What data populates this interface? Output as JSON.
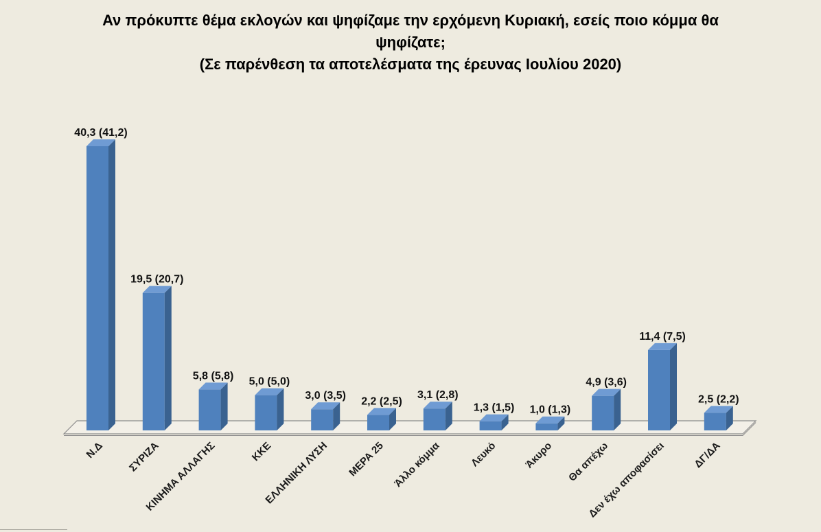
{
  "chart_data": {
    "type": "bar",
    "style": "3d",
    "title": "Αν πρόκυπτε θέμα εκλογών και ψηφίζαμε την ερχόμενη Κυριακή, εσείς ποιο κόμμα θα\nψηφίζατε;",
    "subtitle": "(Σε παρένθεση τα αποτελέσματα της έρευνας Ιουλίου 2020)",
    "categories": [
      "Ν.Δ",
      "ΣΥΡΙΖΑ",
      "ΚΙΝΗΜΑ ΑΛΛΑΓΗΣ",
      "ΚΚΕ",
      "ΕΛΛΗΝΙΚΗ ΛΥΣΗ",
      "ΜΕΡΑ 25",
      "Άλλο κόμμα",
      "Λευκό",
      "Άκυρο",
      "Θα απέχω",
      "Δεν έχω αποφασίσει",
      "ΔΓ/ΔΑ"
    ],
    "series": [
      {
        "values": [
          40.3,
          19.5,
          5.8,
          5.0,
          3.0,
          2.2,
          3.1,
          1.3,
          1.0,
          4.9,
          11.4,
          2.5
        ]
      }
    ],
    "previous_values": [
      41.2,
      20.7,
      5.8,
      5.0,
      3.5,
      2.5,
      2.8,
      1.5,
      1.3,
      3.6,
      7.5,
      2.2
    ],
    "data_labels": [
      "40,3 (41,2)",
      "19,5 (20,7)",
      "5,8 (5,8)",
      "5,0 (5,0)",
      "3,0 (3,5)",
      "2,2 (2,5)",
      "3,1 (2,8)",
      "1,3 (1,5)",
      "1,0 (1,3)",
      "4,9 (3,6)",
      "11,4 (7,5)",
      "2,5 (2,2)"
    ],
    "grid": false,
    "legend": "none",
    "colors": {
      "background": "#eeebe0",
      "bar_front": "#4f81bd",
      "bar_side": "#3a6290",
      "bar_top": "#6f9bd3",
      "floor": "#f3f0e8",
      "floor_edge": "#8c8c8c",
      "text": "#111111"
    }
  }
}
